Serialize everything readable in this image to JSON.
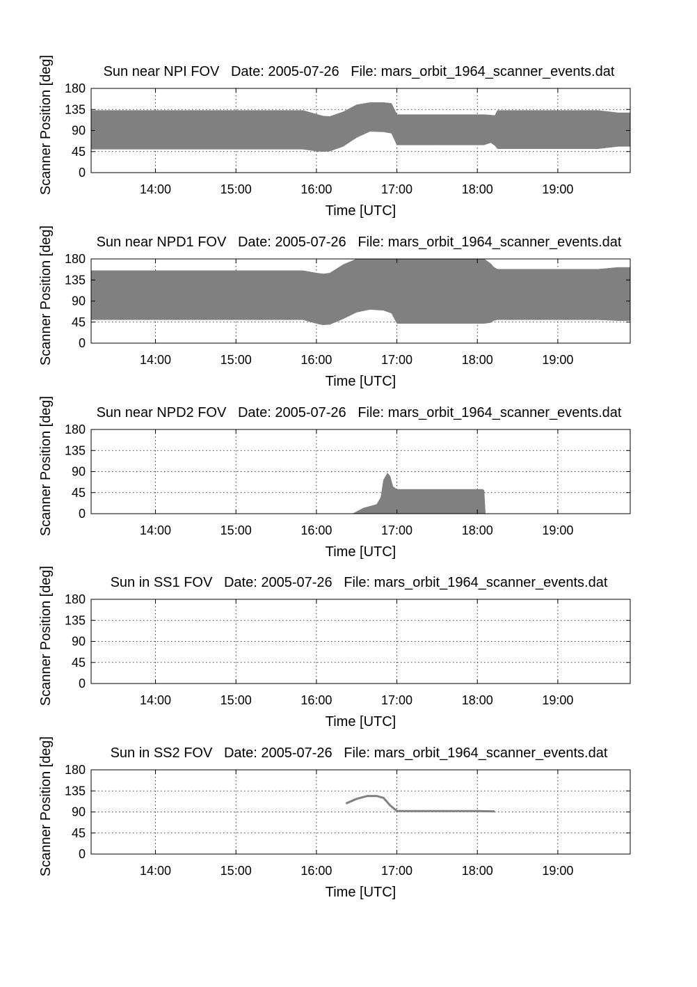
{
  "chart_data": [
    {
      "type": "area",
      "title": "Sun near NPI FOV   Date: 2005-07-26   File: mars_orbit_1964_scanner_events.dat",
      "xlabel": "Time [UTC]",
      "ylabel": "Scanner Position [deg]",
      "xlim": [
        "13:12",
        "19:54"
      ],
      "ylim": [
        0,
        180
      ],
      "xticks": [
        "14:00",
        "15:00",
        "16:00",
        "17:00",
        "18:00",
        "19:00"
      ],
      "yticks": [
        0,
        45,
        90,
        135,
        180
      ],
      "grid": true,
      "fill_color": "#808080",
      "series": [
        {
          "x": [
            "13:12",
            "15:50",
            "16:00",
            "16:05",
            "16:10",
            "16:20",
            "16:30",
            "16:40",
            "16:50",
            "16:56",
            "17:00",
            "17:30",
            "18:00",
            "18:05",
            "18:10",
            "18:13",
            "18:15",
            "18:20",
            "19:00",
            "19:30",
            "19:45",
            "19:54"
          ],
          "low": [
            50,
            50,
            46,
            45,
            46,
            56,
            75,
            88,
            87,
            84,
            59,
            59,
            59,
            59,
            64,
            58,
            51,
            51,
            51,
            51,
            56,
            56
          ],
          "high": [
            133,
            133,
            125,
            121,
            120,
            130,
            145,
            150,
            150,
            148,
            124,
            124,
            124,
            124,
            123,
            122,
            133,
            133,
            133,
            133,
            128,
            128
          ]
        }
      ]
    },
    {
      "type": "area",
      "title": "Sun near NPD1 FOV   Date: 2005-07-26   File: mars_orbit_1964_scanner_events.dat",
      "xlabel": "Time [UTC]",
      "ylabel": "Scanner Position [deg]",
      "xlim": [
        "13:12",
        "19:54"
      ],
      "ylim": [
        0,
        180
      ],
      "xticks": [
        "14:00",
        "15:00",
        "16:00",
        "17:00",
        "18:00",
        "19:00"
      ],
      "yticks": [
        0,
        45,
        90,
        135,
        180
      ],
      "grid": true,
      "fill_color": "#808080",
      "series": [
        {
          "x": [
            "13:12",
            "15:50",
            "16:00",
            "16:05",
            "16:10",
            "16:20",
            "16:30",
            "16:40",
            "16:50",
            "16:56",
            "17:00",
            "17:30",
            "18:00",
            "18:05",
            "18:10",
            "18:12",
            "18:15",
            "18:20",
            "19:00",
            "19:30",
            "19:45",
            "19:54"
          ],
          "low": [
            50,
            50,
            42,
            39,
            40,
            52,
            66,
            72,
            70,
            64,
            42,
            42,
            42,
            42,
            44,
            48,
            50,
            50,
            50,
            50,
            48,
            48
          ],
          "high": [
            155,
            155,
            150,
            148,
            150,
            168,
            180,
            180,
            180,
            180,
            180,
            180,
            180,
            180,
            170,
            163,
            158,
            158,
            158,
            158,
            162,
            162
          ]
        }
      ]
    },
    {
      "type": "area",
      "title": "Sun near NPD2 FOV   Date: 2005-07-26   File: mars_orbit_1964_scanner_events.dat",
      "xlabel": "Time [UTC]",
      "ylabel": "Scanner Position [deg]",
      "xlim": [
        "13:12",
        "19:54"
      ],
      "ylim": [
        0,
        180
      ],
      "xticks": [
        "14:00",
        "15:00",
        "16:00",
        "17:00",
        "18:00",
        "19:00"
      ],
      "yticks": [
        0,
        45,
        90,
        135,
        180
      ],
      "grid": true,
      "fill_color": "#808080",
      "series": [
        {
          "x": [
            "16:27",
            "16:35",
            "16:45",
            "16:48",
            "16:50",
            "16:53",
            "16:55",
            "16:57",
            "17:00",
            "17:30",
            "18:00",
            "18:04",
            "18:05",
            "18:06"
          ],
          "low": [
            0,
            0,
            0,
            0,
            0,
            0,
            0,
            0,
            0,
            0,
            0,
            0,
            0,
            0
          ],
          "high": [
            0,
            12,
            20,
            35,
            72,
            87,
            80,
            58,
            52,
            52,
            52,
            52,
            50,
            0
          ]
        }
      ]
    },
    {
      "type": "area",
      "title": "Sun in SS1 FOV   Date: 2005-07-26   File: mars_orbit_1964_scanner_events.dat",
      "xlabel": "Time [UTC]",
      "ylabel": "Scanner Position [deg]",
      "xlim": [
        "13:12",
        "19:54"
      ],
      "ylim": [
        0,
        180
      ],
      "xticks": [
        "14:00",
        "15:00",
        "16:00",
        "17:00",
        "18:00",
        "19:00"
      ],
      "yticks": [
        0,
        45,
        90,
        135,
        180
      ],
      "grid": true,
      "fill_color": "#808080",
      "series": []
    },
    {
      "type": "line",
      "title": "Sun in SS2 FOV   Date: 2005-07-26   File: mars_orbit_1964_scanner_events.dat",
      "xlabel": "Time [UTC]",
      "ylabel": "Scanner Position [deg]",
      "xlim": [
        "13:12",
        "19:54"
      ],
      "ylim": [
        0,
        180
      ],
      "xticks": [
        "14:00",
        "15:00",
        "16:00",
        "17:00",
        "18:00",
        "19:00"
      ],
      "yticks": [
        0,
        45,
        90,
        135,
        180
      ],
      "grid": true,
      "line_color": "#808080",
      "series": [
        {
          "x": [
            "16:22",
            "16:30",
            "16:38",
            "16:45",
            "16:50",
            "16:55",
            "17:00",
            "17:30",
            "18:00",
            "18:13"
          ],
          "y": [
            108,
            118,
            124,
            124,
            120,
            104,
            92,
            92,
            92,
            91
          ]
        }
      ]
    }
  ]
}
